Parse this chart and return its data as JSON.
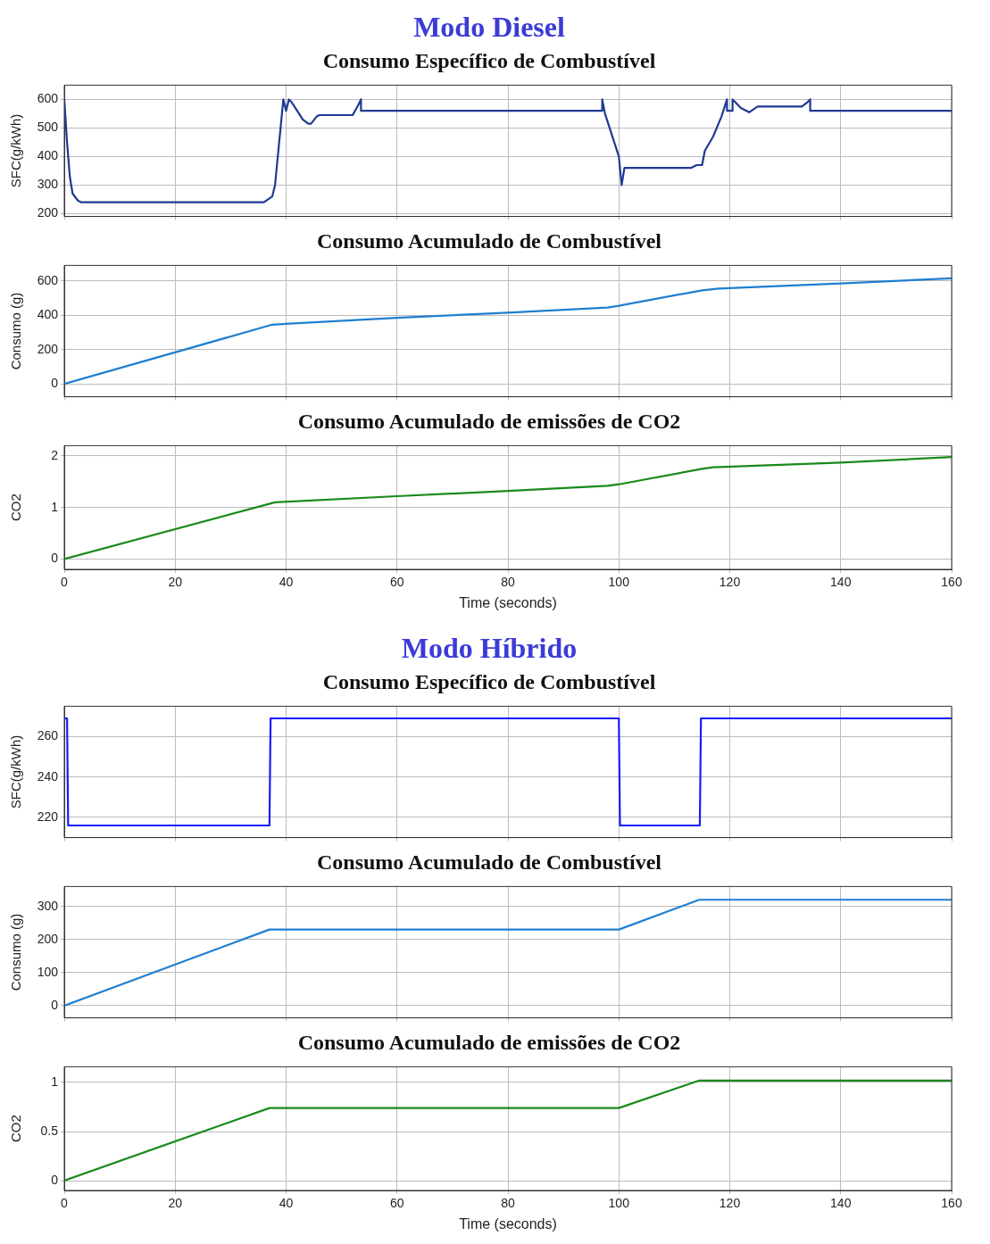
{
  "chart_data": [
    {
      "type": "line",
      "title": "Modo Diesel",
      "subtitle": "Consumo Específico de Combustível",
      "ylabel": "SFC(g/kWh)",
      "xlim": [
        0,
        160
      ],
      "xticks": [
        0,
        20,
        40,
        60,
        80,
        100,
        120,
        140,
        160
      ],
      "ylim": [
        190,
        650
      ],
      "yticks": [
        200,
        300,
        400,
        500,
        600
      ],
      "grid": true,
      "tick_labels": "y",
      "marker": "none",
      "x": [
        0,
        0.5,
        1,
        1.5,
        2.5,
        3,
        36,
        37.5,
        38,
        38.5,
        39,
        39.5,
        40,
        40.5,
        41,
        42,
        43,
        44,
        44.5,
        45.5,
        46,
        52,
        53,
        53.5,
        53.5,
        97,
        97,
        97.5,
        100,
        100.5,
        101,
        113,
        114,
        115,
        115.5,
        117,
        118.5,
        119.5,
        119.5,
        120.5,
        120.5,
        121,
        122,
        123.5,
        125,
        133,
        134,
        134.5,
        134.5,
        160
      ],
      "series": [
        {
          "color": "#1f3a93",
          "values": [
            600,
            450,
            330,
            270,
            245,
            240,
            240,
            260,
            300,
            400,
            500,
            600,
            560,
            600,
            590,
            560,
            530,
            515,
            515,
            540,
            545,
            545,
            580,
            600,
            560,
            560,
            600,
            550,
            400,
            300,
            360,
            360,
            370,
            370,
            420,
            470,
            540,
            600,
            560,
            560,
            600,
            590,
            570,
            555,
            575,
            575,
            590,
            600,
            560,
            560
          ]
        }
      ]
    },
    {
      "type": "line",
      "subtitle": "Consumo Acumulado de Combustível",
      "ylabel": "Consumo (g)",
      "xlim": [
        0,
        160
      ],
      "xticks": [
        0,
        20,
        40,
        60,
        80,
        100,
        120,
        140,
        160
      ],
      "ylim": [
        -75,
        690
      ],
      "yticks": [
        0,
        200,
        400,
        600
      ],
      "grid": true,
      "tick_labels": "y",
      "marker": "none",
      "x": [
        0,
        37.5,
        40,
        60,
        80,
        98,
        100,
        115,
        118,
        140,
        160
      ],
      "series": [
        {
          "color": "#1f7fd0",
          "values": [
            0,
            345,
            350,
            385,
            415,
            445,
            455,
            545,
            555,
            585,
            615
          ]
        }
      ]
    },
    {
      "type": "line",
      "subtitle": "Consumo Acumulado de emissões de  CO2",
      "xlabel": "Time (seconds)",
      "ylabel": "CO2",
      "xlim": [
        0,
        160
      ],
      "xticks": [
        0,
        20,
        40,
        60,
        80,
        100,
        120,
        140,
        160
      ],
      "ylim": [
        -0.2,
        2.2
      ],
      "yticks": [
        0,
        1,
        2
      ],
      "grid": true,
      "marker": "none",
      "x": [
        0,
        38,
        60,
        80,
        98,
        100,
        115,
        117,
        140,
        160
      ],
      "series": [
        {
          "color": "#1a8a1a",
          "values": [
            0,
            1.1,
            1.22,
            1.32,
            1.42,
            1.45,
            1.75,
            1.78,
            1.87,
            1.98
          ]
        }
      ]
    },
    {
      "type": "line",
      "title": "Modo Híbrido",
      "subtitle": "Consumo Específico de Combustível",
      "ylabel": "SFC(g/kWh)",
      "xlim": [
        0,
        160
      ],
      "xticks": [
        0,
        20,
        40,
        60,
        80,
        100,
        120,
        140,
        160
      ],
      "ylim": [
        210,
        275
      ],
      "yticks": [
        220,
        240,
        260
      ],
      "grid": true,
      "tick_labels": "y",
      "marker": "none",
      "x": [
        0,
        0.5,
        0.7,
        37,
        37.2,
        100,
        100.2,
        114.6,
        114.8,
        160
      ],
      "series": [
        {
          "color": "#1a1aff",
          "values": [
            269,
            269,
            216,
            216,
            269,
            269,
            216,
            216,
            269,
            269
          ]
        }
      ]
    },
    {
      "type": "line",
      "subtitle": "Consumo Acumulado de Combustível",
      "ylabel": "Consumo (g)",
      "xlim": [
        0,
        160
      ],
      "xticks": [
        0,
        20,
        40,
        60,
        80,
        100,
        120,
        140,
        160
      ],
      "ylim": [
        -37,
        360
      ],
      "yticks": [
        0,
        100,
        200,
        300
      ],
      "grid": true,
      "tick_labels": "y",
      "marker": "none",
      "x": [
        0,
        37,
        100,
        114.5,
        160
      ],
      "series": [
        {
          "color": "#1f7fd0",
          "values": [
            0,
            230,
            230,
            320,
            320
          ]
        }
      ]
    },
    {
      "type": "line",
      "subtitle": "Consumo Acumulado de emissões de  CO2",
      "xlabel": "Time (seconds)",
      "ylabel": "CO2",
      "xlim": [
        0,
        160
      ],
      "xticks": [
        0,
        20,
        40,
        60,
        80,
        100,
        120,
        140,
        160
      ],
      "ylim": [
        -0.1,
        1.16
      ],
      "yticks": [
        0,
        0.5,
        1
      ],
      "grid": true,
      "marker": "none",
      "x": [
        0,
        37,
        100,
        114.5,
        160
      ],
      "series": [
        {
          "color": "#1a8a1a",
          "values": [
            0,
            0.74,
            0.74,
            1.02,
            1.02
          ]
        }
      ]
    }
  ]
}
